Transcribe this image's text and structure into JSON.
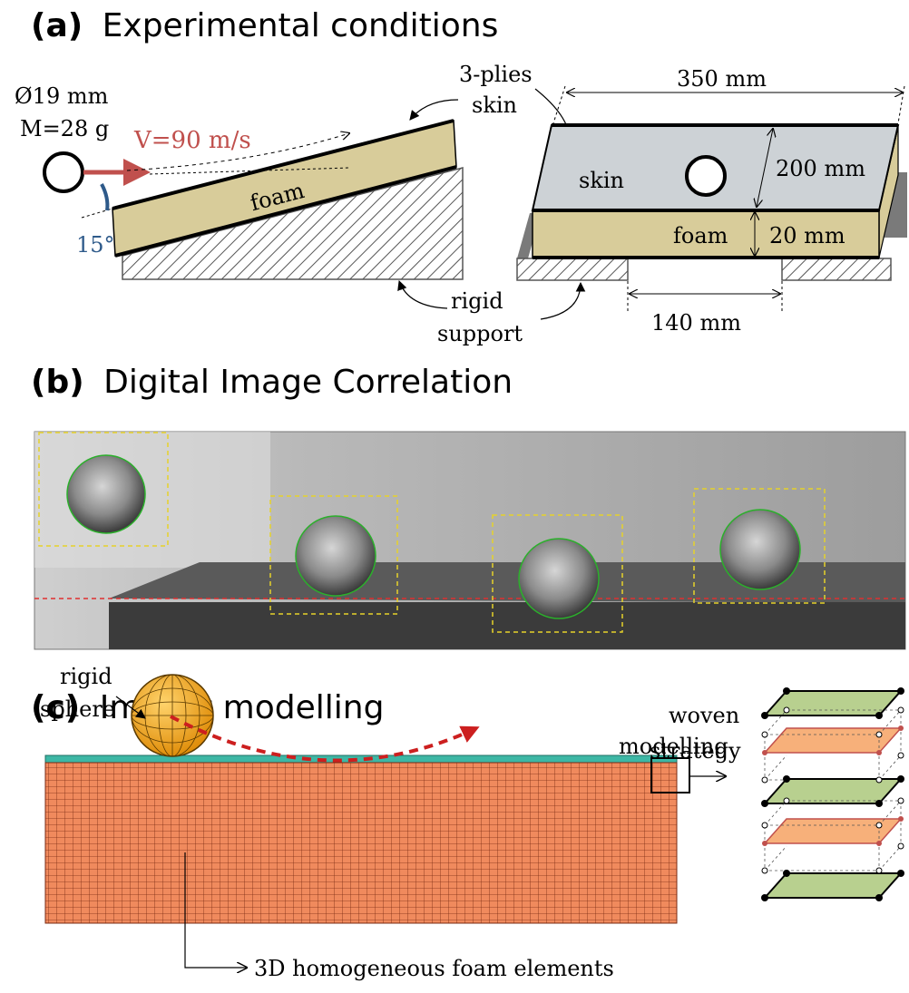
{
  "sections": {
    "a": {
      "letter": "(a)",
      "title": "Experimental conditions"
    },
    "b": {
      "letter": "(b)",
      "title": "Digital Image Correlation"
    },
    "c": {
      "letter": "(c)",
      "title": "Impact modelling"
    }
  },
  "panel_a": {
    "diameter": "Ø19 mm",
    "mass": "M=28 g",
    "velocity": "V=90 m/s",
    "angle": "15°",
    "foam_label": "foam",
    "plies_line1": "3-plies",
    "plies_line2": "skin",
    "rigid_line1": "rigid",
    "rigid_line2": "support",
    "skin_label": "skin",
    "foam_label_right": "foam",
    "dim_length": "350 mm",
    "dim_width": "200 mm",
    "dim_thickness": "20 mm",
    "dim_span": "140 mm"
  },
  "panel_c": {
    "sphere_line1": "rigid",
    "sphere_line2": "sphere",
    "woven_line1": "woven",
    "woven_line2": "modelling",
    "woven_line3": "strategy",
    "foam_elements": "3D homogeneous foam elements"
  },
  "colors": {
    "foam": "#d8cc9a",
    "skin": "#cdd2d6",
    "velocity": "#c0504d",
    "angle": "#2e5a8a",
    "mesh": "#f08a5d",
    "skin_layer": "#3db7a5",
    "sphere": "#f5a623",
    "trajectory": "#cc1f1f",
    "ply": "#b8d08f",
    "yarn": "#f7b07a"
  }
}
